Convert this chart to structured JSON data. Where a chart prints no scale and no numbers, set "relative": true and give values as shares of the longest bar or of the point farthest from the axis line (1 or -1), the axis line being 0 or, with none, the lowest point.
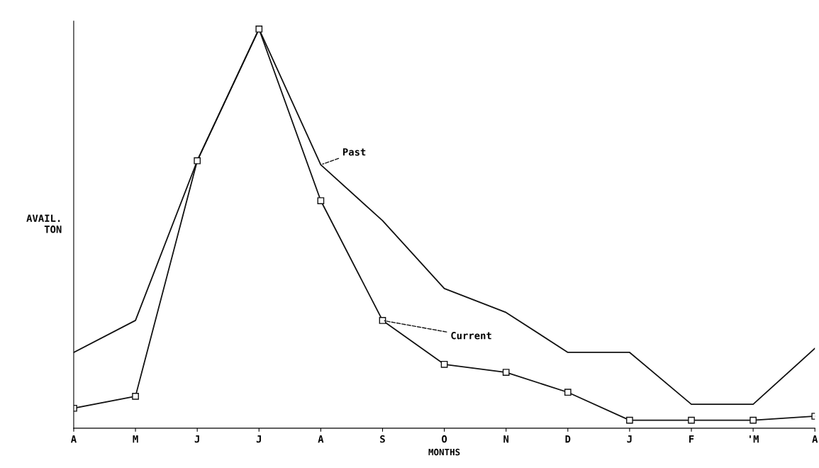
{
  "chart_data": {
    "type": "line",
    "relative": true,
    "xlabel": "MONTHS",
    "ylabel": "AVAIL.\nTON",
    "categories": [
      "A",
      "M",
      "J",
      "J",
      "A",
      "S",
      "O",
      "N",
      "D",
      "J",
      "F",
      "'M",
      "A"
    ],
    "series": [
      {
        "name": "Past",
        "color": "#111111",
        "marker": "none",
        "values": [
          0.19,
          0.27,
          0.67,
          1,
          0.66,
          0.52,
          0.35,
          0.29,
          0.19,
          0.19,
          0.06,
          0.06,
          0.2
        ]
      },
      {
        "name": "Current",
        "color": "#111111",
        "marker": "square",
        "values": [
          0.05,
          0.08,
          0.67,
          1,
          0.57,
          0.27,
          0.16,
          0.14,
          0.09,
          0.02,
          0.02,
          0.02,
          0.03
        ]
      }
    ],
    "grid": false,
    "legend": false,
    "line_style": "solid"
  }
}
